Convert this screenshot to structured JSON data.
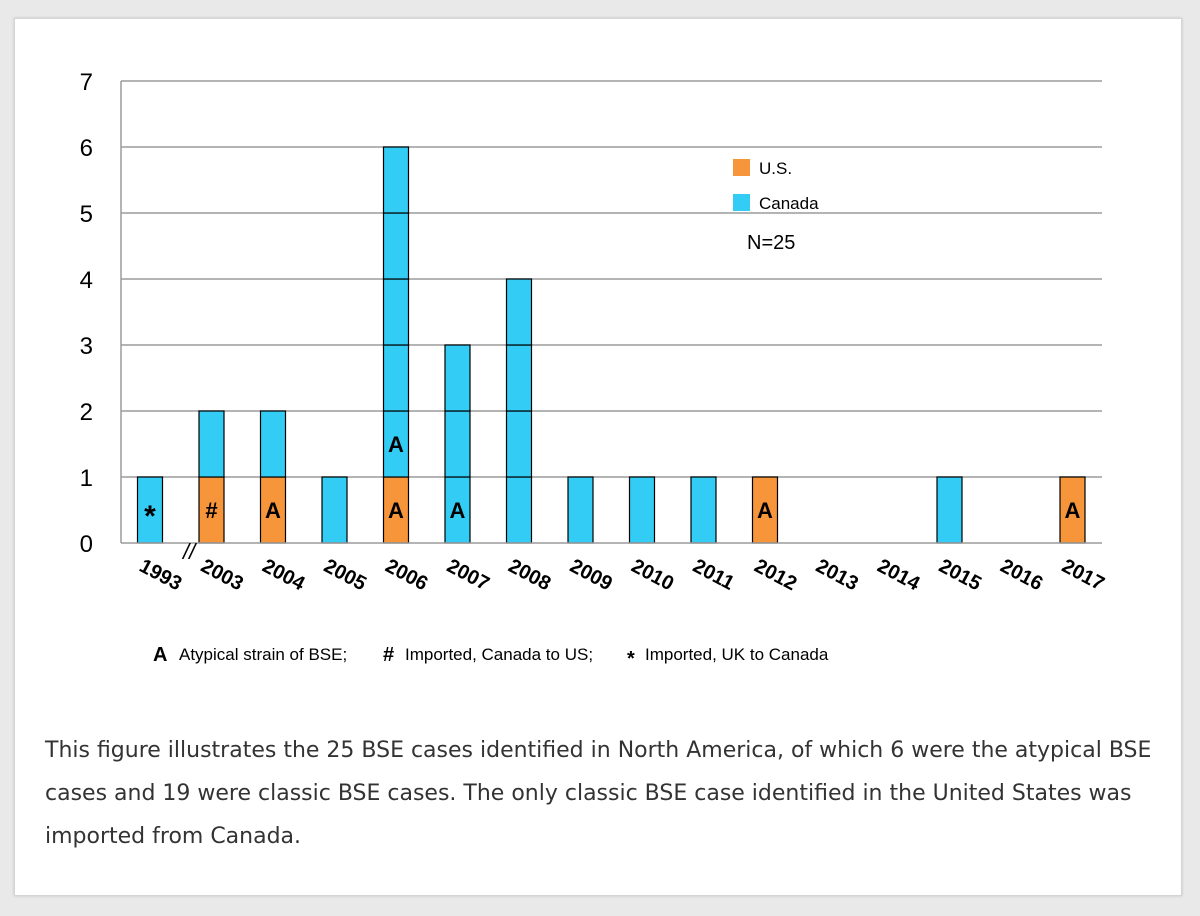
{
  "colors": {
    "us": "#F7953A",
    "canada": "#33CCF5",
    "grid": "#9b9b9b",
    "caption_text": "#333333"
  },
  "chart_data": {
    "type": "bar",
    "stacked": true,
    "categories": [
      "1993",
      "2003",
      "2004",
      "2005",
      "2006",
      "2007",
      "2008",
      "2009",
      "2010",
      "2011",
      "2012",
      "2013",
      "2014",
      "2015",
      "2016",
      "2017"
    ],
    "series": [
      {
        "name": "U.S.",
        "values": [
          0,
          1,
          1,
          0,
          1,
          0,
          0,
          0,
          0,
          0,
          1,
          0,
          0,
          0,
          0,
          1
        ]
      },
      {
        "name": "Canada",
        "values": [
          1,
          1,
          1,
          1,
          5,
          3,
          4,
          1,
          1,
          1,
          0,
          0,
          0,
          1,
          0,
          0
        ]
      }
    ],
    "ylim": [
      0,
      7
    ],
    "yticks": [
      "0",
      "1",
      "2",
      "3",
      "4",
      "5",
      "6",
      "7"
    ],
    "grid": true,
    "axis_break": "//",
    "legend_position": "top-right",
    "annotation": "N=25",
    "markers": [
      {
        "category": "1993",
        "level": 1,
        "symbol": "*"
      },
      {
        "category": "2003",
        "level": 1,
        "symbol": "#"
      },
      {
        "category": "2004",
        "level": 1,
        "symbol": "A"
      },
      {
        "category": "2006",
        "level": 1,
        "symbol": "A"
      },
      {
        "category": "2006",
        "level": 2,
        "symbol": "A"
      },
      {
        "category": "2007",
        "level": 1,
        "symbol": "A"
      },
      {
        "category": "2012",
        "level": 1,
        "symbol": "A"
      },
      {
        "category": "2017",
        "level": 1,
        "symbol": "A"
      }
    ],
    "footnote": [
      {
        "symbol": "A",
        "text": "Atypical strain of BSE;"
      },
      {
        "symbol": "#",
        "text": "Imported,  Canada to US;"
      },
      {
        "symbol": "*",
        "text": "Imported,  UK to Canada"
      }
    ]
  },
  "caption": "This figure illustrates the 25 BSE cases identified in North America, of which 6 were the atypical BSE cases and 19 were classic BSE cases. The only classic BSE case identified in the United States was imported from Canada."
}
